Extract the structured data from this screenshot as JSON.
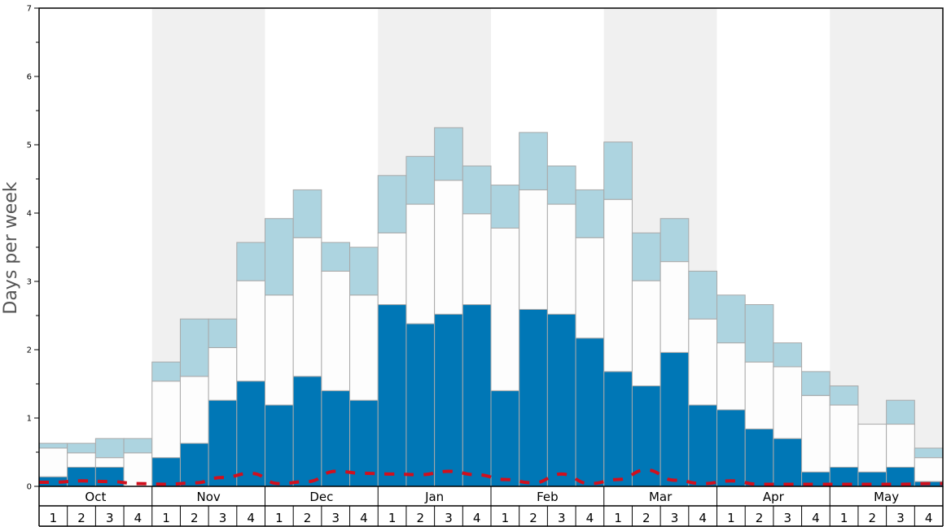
{
  "chart_data": {
    "type": "bar",
    "ylabel": "Days per week",
    "ylim": [
      0,
      7
    ],
    "yticks": [
      "0",
      "1",
      "2",
      "3",
      "4",
      "5",
      "6",
      "7"
    ],
    "months": [
      "Oct",
      "Nov",
      "Dec",
      "Jan",
      "Feb",
      "Mar",
      "Apr",
      "May"
    ],
    "week_labels": [
      "1",
      "2",
      "3",
      "4"
    ],
    "stacked": true,
    "series": [
      {
        "color": "#0077b6",
        "values": [
          0.14,
          0.28,
          0.28,
          0.0,
          0.42,
          0.63,
          1.26,
          1.54,
          1.19,
          1.61,
          1.4,
          1.26,
          2.66,
          2.38,
          2.52,
          2.66,
          1.4,
          2.59,
          2.52,
          2.17,
          1.68,
          1.47,
          1.96,
          1.19,
          1.12,
          0.84,
          0.7,
          0.21,
          0.28,
          0.21,
          0.28,
          0.07
        ]
      },
      {
        "color": "#fdfdfd",
        "values": [
          0.42,
          0.21,
          0.14,
          0.49,
          1.12,
          0.98,
          0.77,
          1.47,
          1.61,
          2.03,
          1.75,
          1.54,
          1.05,
          1.75,
          1.96,
          1.33,
          2.38,
          1.75,
          1.61,
          1.47,
          2.52,
          1.54,
          1.33,
          1.26,
          0.98,
          0.98,
          1.05,
          1.12,
          0.91,
          0.7,
          0.63,
          0.35
        ]
      },
      {
        "color": "#add4e0",
        "values": [
          0.07,
          0.14,
          0.28,
          0.21,
          0.28,
          0.84,
          0.42,
          0.56,
          1.12,
          0.7,
          0.42,
          0.7,
          0.84,
          0.7,
          0.77,
          0.7,
          0.63,
          0.84,
          0.56,
          0.7,
          0.84,
          0.7,
          0.63,
          0.7,
          0.7,
          0.84,
          0.35,
          0.35,
          0.28,
          0.0,
          0.35,
          0.14
        ]
      }
    ],
    "line": {
      "style": "dashed",
      "color": "#d0101e",
      "values": [
        0.06,
        0.08,
        0.07,
        0.04,
        0.03,
        0.05,
        0.13,
        0.19,
        0.04,
        0.07,
        0.22,
        0.19,
        0.18,
        0.17,
        0.22,
        0.17,
        0.1,
        0.05,
        0.18,
        0.04,
        0.1,
        0.24,
        0.09,
        0.04,
        0.08,
        0.03,
        0.03,
        0.03,
        0.03,
        0.03,
        0.03,
        0.04
      ]
    },
    "shaded_months": [
      "Nov",
      "Jan",
      "Mar",
      "May"
    ],
    "colors": {
      "shade": "#f0f0f0",
      "bar_border": "#a9a9a9",
      "axis": "#000000"
    }
  }
}
